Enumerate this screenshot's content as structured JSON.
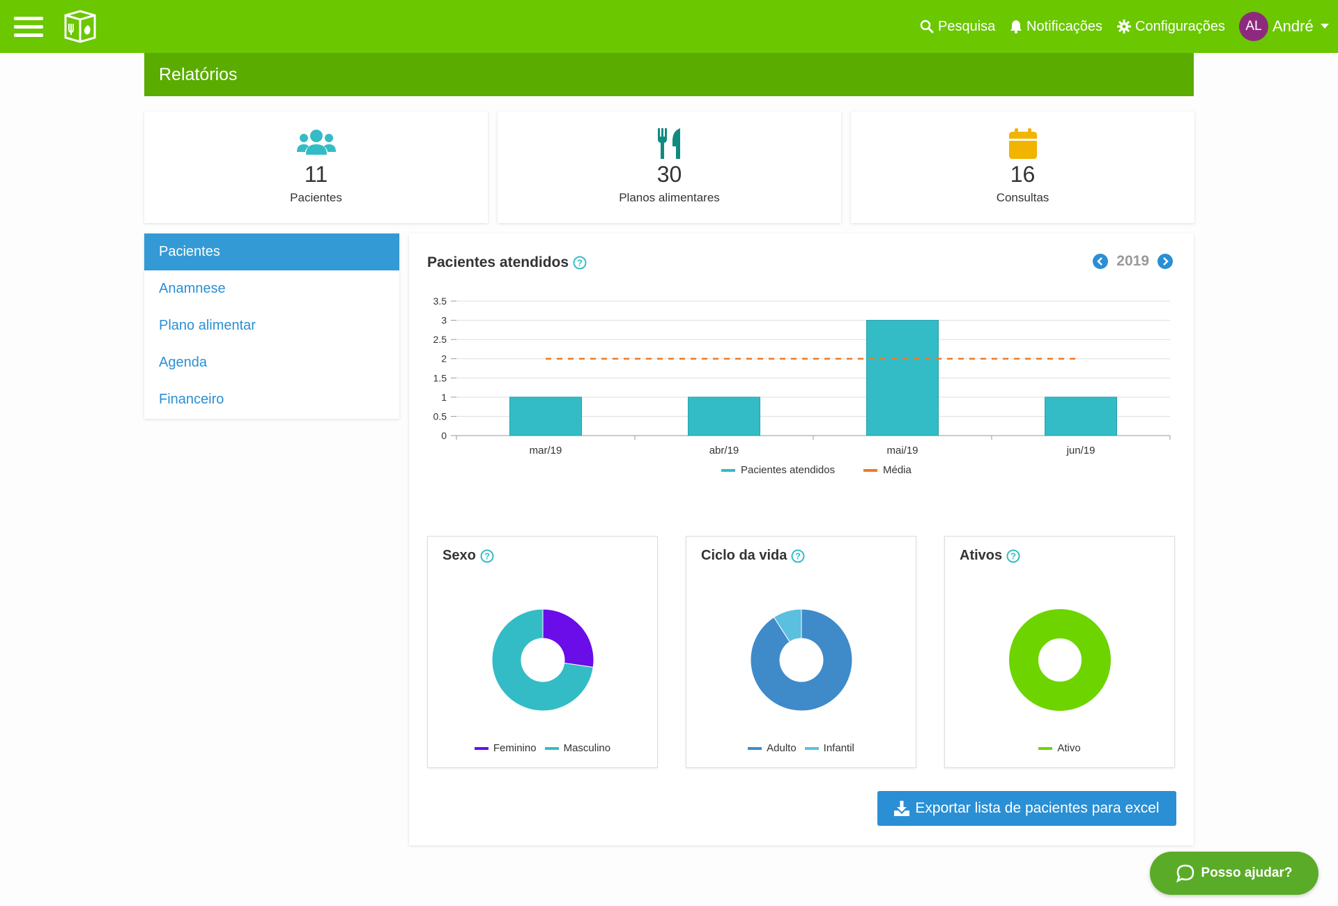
{
  "header": {
    "nav": [
      {
        "label": "Pesquisa",
        "icon": "search-icon"
      },
      {
        "label": "Notificações",
        "icon": "bell-icon"
      },
      {
        "label": "Configurações",
        "icon": "gear-icon"
      }
    ],
    "user": {
      "initials": "AL",
      "name": "André"
    }
  },
  "page_title": "Relatórios",
  "stats": [
    {
      "value": "11",
      "label": "Pacientes",
      "icon": "users-icon",
      "color": "#33bcc6"
    },
    {
      "value": "30",
      "label": "Planos alimentares",
      "icon": "utensils-icon",
      "color": "#0f8b80"
    },
    {
      "value": "16",
      "label": "Consultas",
      "icon": "calendar-icon",
      "color": "#f1b400"
    }
  ],
  "sidebar": {
    "items": [
      {
        "label": "Pacientes",
        "active": true
      },
      {
        "label": "Anamnese",
        "active": false
      },
      {
        "label": "Plano alimentar",
        "active": false
      },
      {
        "label": "Agenda",
        "active": false
      },
      {
        "label": "Financeiro",
        "active": false
      }
    ]
  },
  "main": {
    "title": "Pacientes atendidos",
    "year": "2019",
    "export_label": "Exportar lista de pacientes para excel"
  },
  "chart_data": [
    {
      "type": "bar",
      "title": "Pacientes atendidos",
      "categories": [
        "mar/19",
        "abr/19",
        "mai/19",
        "jun/19"
      ],
      "series": [
        {
          "name": "Pacientes atendidos",
          "type": "bar",
          "values": [
            1,
            1,
            3,
            1
          ],
          "color": "#33bcc6"
        },
        {
          "name": "Média",
          "type": "line-dashed",
          "values": [
            2,
            2,
            2,
            2
          ],
          "color": "#f07a23"
        }
      ],
      "ylim": [
        0,
        3.5
      ],
      "yticks": [
        0,
        0.5,
        1,
        1.5,
        2,
        2.5,
        3,
        3.5
      ],
      "grid": true,
      "legend": "bottom"
    },
    {
      "type": "pie",
      "title": "Sexo",
      "labels": [
        "Feminino",
        "Masculino"
      ],
      "values": [
        3,
        8
      ],
      "colors": [
        "#6a0de8",
        "#33bcc6"
      ],
      "legend": "bottom"
    },
    {
      "type": "pie",
      "title": "Ciclo da vida",
      "labels": [
        "Adulto",
        "Infantil"
      ],
      "values": [
        10,
        1
      ],
      "colors": [
        "#3f8bca",
        "#5bbfe0"
      ],
      "legend": "bottom"
    },
    {
      "type": "pie",
      "title": "Ativos",
      "labels": [
        "Ativo"
      ],
      "values": [
        11
      ],
      "colors": [
        "#6dd400"
      ],
      "legend": "bottom"
    }
  ],
  "help_button": "Posso ajudar?"
}
